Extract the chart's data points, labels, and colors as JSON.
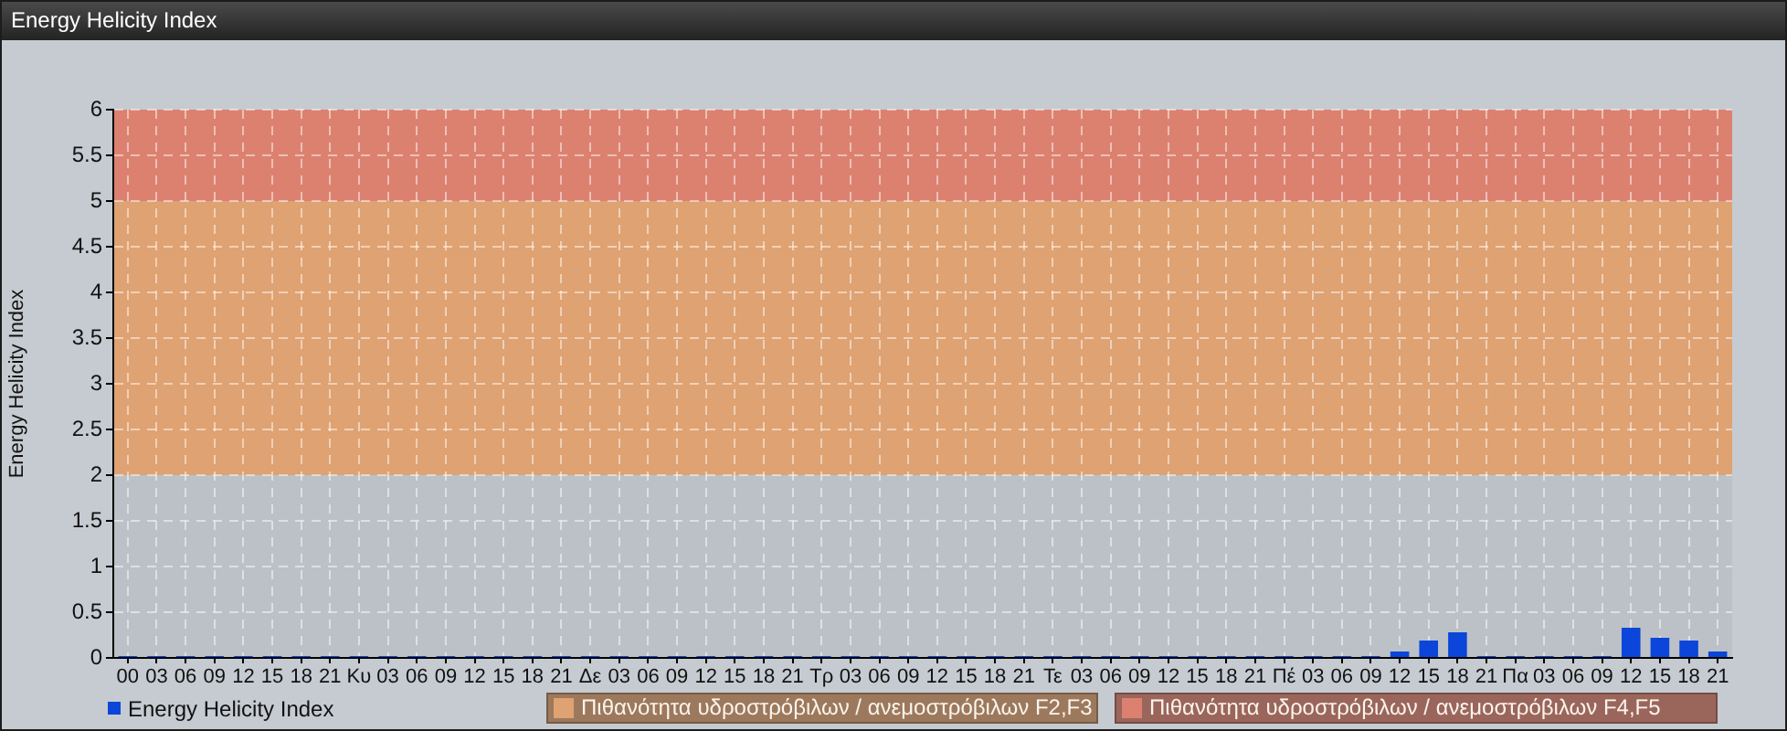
{
  "chart_data": {
    "type": "bar",
    "title": "Energy Helicity Index",
    "ylabel": "Energy Helicity Index",
    "categories": [
      "00",
      "03",
      "06",
      "09",
      "12",
      "15",
      "18",
      "21",
      "Κυ",
      "03",
      "06",
      "09",
      "12",
      "15",
      "18",
      "21",
      "Δε",
      "03",
      "06",
      "09",
      "12",
      "15",
      "18",
      "21",
      "Τρ",
      "03",
      "06",
      "09",
      "12",
      "15",
      "18",
      "21",
      "Τε",
      "03",
      "06",
      "09",
      "12",
      "15",
      "18",
      "21",
      "Πέ",
      "03",
      "06",
      "09",
      "12",
      "15",
      "18",
      "21",
      "Πα",
      "03",
      "06",
      "09",
      "12",
      "15",
      "18",
      "21"
    ],
    "series": [
      {
        "name": "Energy Helicity Index",
        "color": "#0b45d9",
        "values": [
          0.02,
          0.02,
          0.02,
          0.02,
          0.02,
          0.02,
          0.02,
          0.02,
          0.02,
          0.02,
          0.02,
          0.02,
          0.02,
          0.02,
          0.02,
          0.02,
          0.02,
          0.02,
          0.02,
          0.02,
          0.02,
          0.02,
          0.02,
          0.02,
          0.02,
          0.02,
          0.02,
          0.02,
          0.02,
          0.02,
          0.02,
          0.02,
          0.02,
          0.02,
          0.02,
          0.02,
          0.02,
          0.02,
          0.02,
          0.02,
          0.02,
          0.02,
          0.02,
          0.02,
          0.07,
          0.19,
          0.28,
          0.02,
          0.02,
          0.02,
          0.02,
          0.02,
          0.33,
          0.22,
          0.19,
          0.07
        ]
      }
    ],
    "ylim": [
      0,
      6
    ],
    "yticks": [
      0,
      0.5,
      1,
      1.5,
      2,
      2.5,
      3,
      3.5,
      4,
      4.5,
      5,
      5.5,
      6
    ],
    "grid": true,
    "legend": "bottom",
    "bands": [
      {
        "axis": "y",
        "from": 2,
        "to": 5,
        "label": "Πιθανότητα υδροστρόβιλων / ανεμοστρόβιλων F2,F3",
        "color": "#dfa272"
      },
      {
        "axis": "y",
        "from": 5,
        "to": 6,
        "label": "Πιθανότητα υδροστρόβιλων / ανεμοστρόβιλων F4,F5",
        "color": "#dc8170"
      }
    ]
  }
}
